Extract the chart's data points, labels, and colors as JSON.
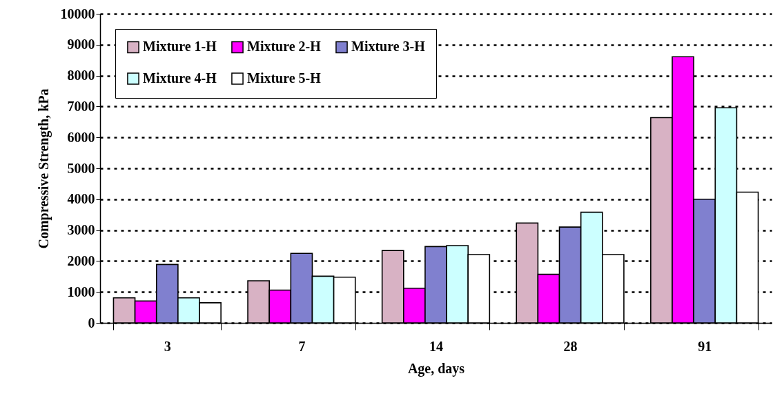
{
  "chart_data": {
    "type": "bar",
    "xlabel": "Age, days",
    "ylabel": "Compressive Strength, kPa",
    "categories": [
      "3",
      "7",
      "14",
      "28",
      "91"
    ],
    "series": [
      {
        "name": "Mixture 1-H",
        "color": "#d8b2c4",
        "values": [
          810,
          1360,
          2340,
          3230,
          6640
        ]
      },
      {
        "name": "Mixture 2-H",
        "color": "#ff00ff",
        "values": [
          710,
          1060,
          1120,
          1570,
          8610
        ]
      },
      {
        "name": "Mixture 3-H",
        "color": "#8080cf",
        "values": [
          1890,
          2250,
          2470,
          3100,
          4000
        ]
      },
      {
        "name": "Mixture 4-H",
        "color": "#ccffff",
        "values": [
          810,
          1510,
          2500,
          3580,
          6960
        ]
      },
      {
        "name": "Mixture 5-H",
        "color": "#ffffff",
        "values": [
          650,
          1480,
          2210,
          2210,
          4230
        ]
      }
    ],
    "ylim": [
      0,
      10000
    ],
    "yticks": [
      0,
      1000,
      2000,
      3000,
      4000,
      5000,
      6000,
      7000,
      8000,
      9000,
      10000
    ],
    "grid": "y",
    "legend": "top left"
  }
}
